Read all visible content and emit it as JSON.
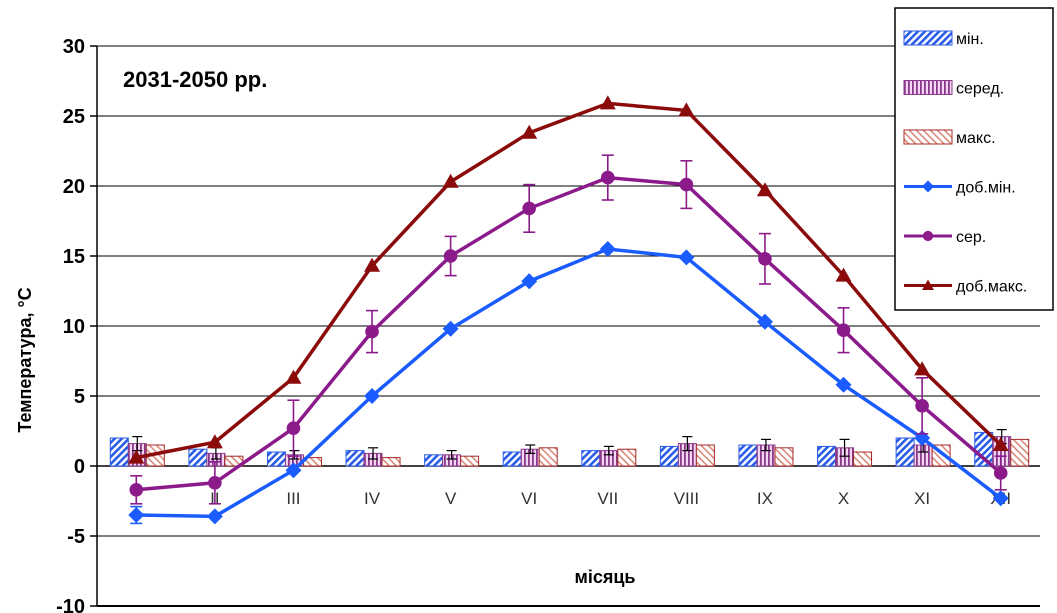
{
  "chart_data": {
    "type": "bar",
    "title": "2031-2050 рр.",
    "xlabel": "місяць",
    "ylabel": "Температура, °C",
    "ylim": [
      -10,
      30
    ],
    "yticks": [
      "30",
      "25",
      "20",
      "15",
      "10",
      "5",
      "0",
      "-5",
      "-10"
    ],
    "grid": true,
    "legend_position": "top-right",
    "categories": [
      "I",
      "II",
      "III",
      "IV",
      "V",
      "VI",
      "VII",
      "VIII",
      "IX",
      "X",
      "XI",
      "XII"
    ],
    "bar_series": [
      {
        "name": "мін.",
        "color": "#2b5ce6",
        "pattern": "diagonal",
        "values": [
          2.0,
          1.2,
          1.0,
          1.1,
          0.8,
          1.0,
          1.1,
          1.4,
          1.5,
          1.4,
          2.0,
          2.4
        ],
        "error": [
          0.0,
          0.0,
          0.0,
          0.0,
          0.0,
          0.0,
          0.0,
          0.0,
          0.0,
          0.0,
          0.0,
          0.0
        ]
      },
      {
        "name": "серед.",
        "color": "#8b3a8b",
        "pattern": "vertical",
        "values": [
          1.6,
          0.9,
          0.8,
          0.9,
          0.8,
          1.2,
          1.1,
          1.6,
          1.5,
          1.3,
          1.5,
          2.1
        ],
        "error": [
          0.5,
          0.4,
          0.3,
          0.4,
          0.3,
          0.3,
          0.3,
          0.5,
          0.4,
          0.6,
          0.5,
          0.5
        ]
      },
      {
        "name": "макс.",
        "color": "#a52a2a",
        "pattern": "diagonal-light",
        "values": [
          1.5,
          0.7,
          0.6,
          0.6,
          0.7,
          1.3,
          1.2,
          1.5,
          1.3,
          1.0,
          1.5,
          1.9
        ],
        "error": [
          0.0,
          0.0,
          0.0,
          0.0,
          0.0,
          0.0,
          0.0,
          0.0,
          0.0,
          0.0,
          0.0,
          0.0
        ]
      }
    ],
    "line_series": [
      {
        "name": "доб.мін.",
        "color": "#1a5cff",
        "marker": "diamond",
        "values": [
          -3.5,
          -3.6,
          -0.3,
          5.0,
          9.8,
          13.2,
          15.5,
          14.9,
          10.3,
          5.8,
          2.0,
          -2.3
        ],
        "error": [
          0.6,
          0.0,
          0.0,
          0.0,
          0.0,
          0.0,
          0.0,
          0.0,
          0.0,
          0.0,
          0.0,
          0.0
        ]
      },
      {
        "name": "сер.",
        "color": "#8b1a8b",
        "marker": "circle",
        "values": [
          -1.7,
          -1.2,
          2.7,
          9.6,
          15.0,
          18.4,
          20.6,
          20.1,
          14.8,
          9.7,
          4.3,
          -0.5
        ],
        "error": [
          1.0,
          1.5,
          2.0,
          1.5,
          1.4,
          1.7,
          1.6,
          1.7,
          1.8,
          1.6,
          2.0,
          1.2
        ]
      },
      {
        "name": "доб.макс.",
        "color": "#8b0a0a",
        "marker": "triangle",
        "values": [
          0.6,
          1.7,
          6.3,
          14.3,
          20.3,
          23.8,
          25.9,
          25.4,
          19.7,
          13.6,
          6.9,
          1.5
        ],
        "error": [
          0.0,
          0.0,
          0.0,
          0.0,
          0.0,
          0.0,
          0.0,
          0.0,
          0.0,
          0.0,
          0.0,
          0.0
        ]
      }
    ]
  }
}
